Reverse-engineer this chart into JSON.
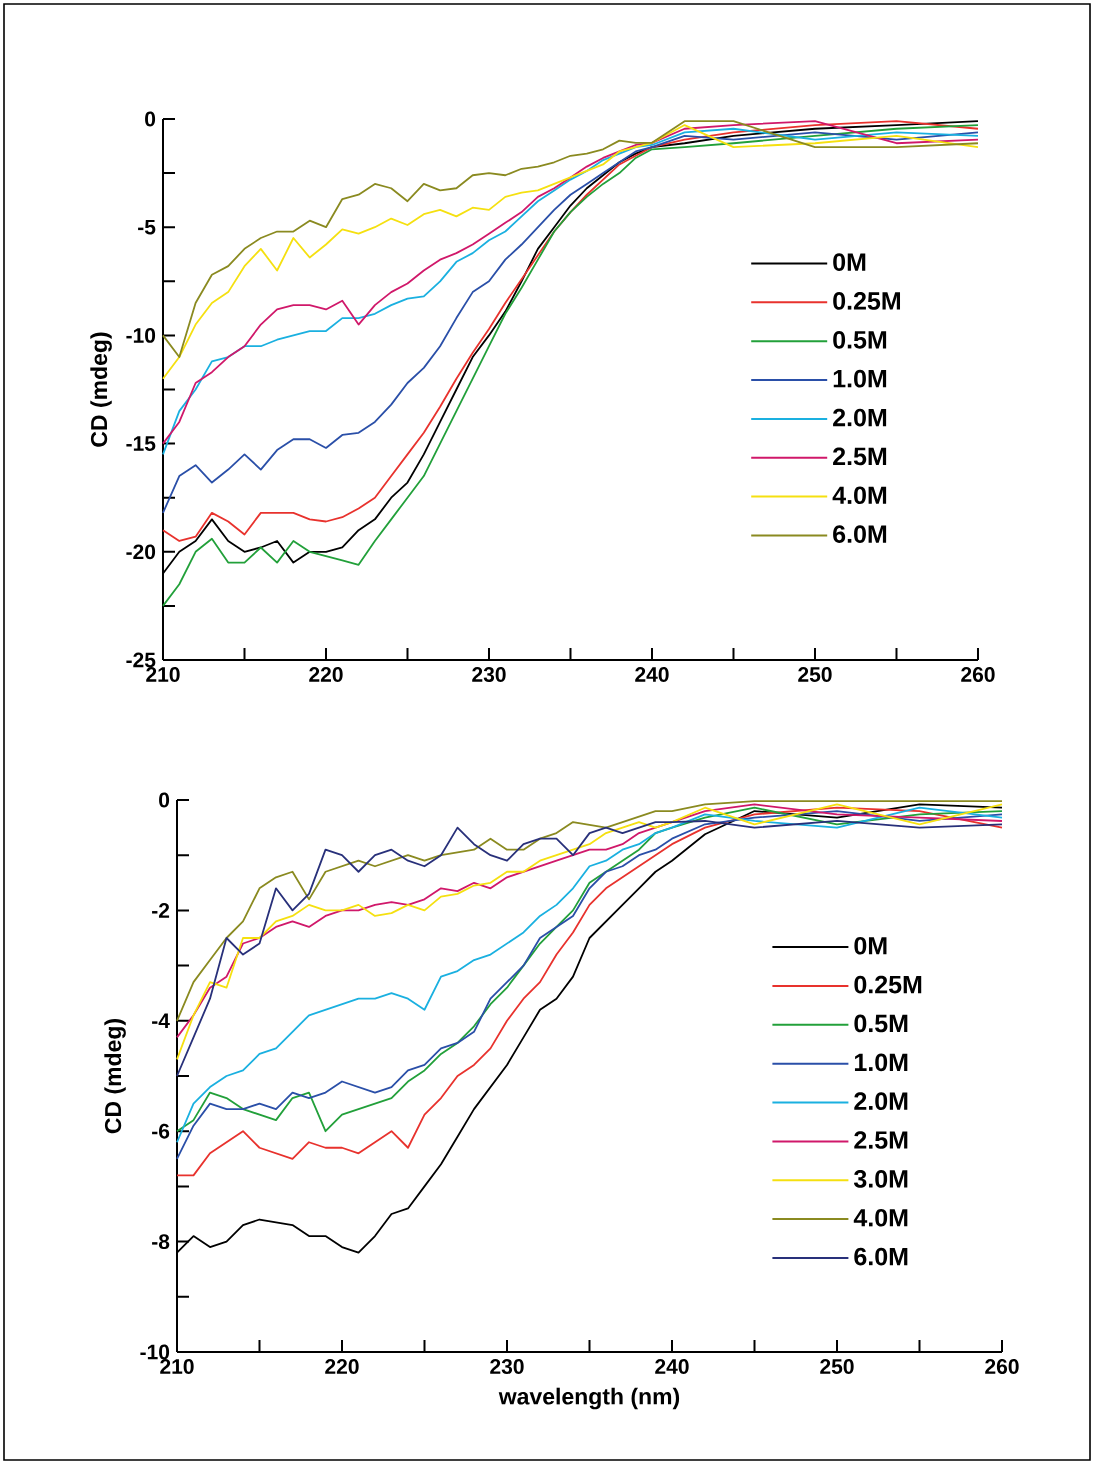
{
  "chart_data": [
    {
      "type": "line",
      "ylabel": "CD (mdeg)",
      "marker": "none",
      "legend": "right",
      "x": [
        210,
        211,
        212,
        213,
        214,
        215,
        216,
        217,
        218,
        219,
        220,
        221,
        222,
        223,
        224,
        225,
        226,
        227,
        228,
        229,
        230,
        231,
        232,
        233,
        234,
        235,
        236,
        237,
        238,
        239,
        240,
        242,
        245,
        250,
        255,
        260
      ],
      "xlim": [
        210,
        260
      ],
      "ylim": [
        -25,
        0
      ],
      "xticks": [
        210,
        {
          "value": 215,
          "label": null
        },
        220,
        {
          "value": 225,
          "label": null
        },
        230,
        {
          "value": 235,
          "label": null
        },
        240,
        {
          "value": 245,
          "label": null
        },
        250,
        {
          "value": 255,
          "label": null
        },
        260
      ],
      "yticks": [
        -25,
        {
          "value": -22.5,
          "label": null
        },
        -20,
        {
          "value": -17.5,
          "label": null
        },
        -15,
        {
          "value": -12.5,
          "label": null
        },
        -10,
        {
          "value": -7.5,
          "label": null
        },
        -5,
        {
          "value": -2.5,
          "label": null
        },
        0
      ],
      "series": [
        {
          "name": "0M",
          "color": "#000000",
          "values": [
            -21,
            -20,
            -19.5,
            -18.5,
            -19.5,
            -20,
            -19.8,
            -19.5,
            -20.5,
            -20,
            -20,
            -19.8,
            -19,
            -18.5,
            -17.5,
            -16.8,
            -15.5,
            -14,
            -12.5,
            -11,
            -10,
            -8.9,
            -7.5,
            -6,
            -5,
            -4,
            -3.2,
            -2.6,
            -2,
            -1.6,
            -1.3,
            -1.12,
            -0.78,
            -0.45,
            -0.28,
            -0.1
          ]
        },
        {
          "name": "0.25M",
          "color": "#e8322d",
          "values": [
            -19,
            -19.5,
            -19.3,
            -18.2,
            -18.6,
            -19.2,
            -18.2,
            -18.2,
            -18.2,
            -18.5,
            -18.6,
            -18.4,
            -18,
            -17.5,
            -16.5,
            -15.5,
            -14.5,
            -13.3,
            -12,
            -10.8,
            -9.7,
            -8.5,
            -7.4,
            -6.3,
            -5.2,
            -4.3,
            -3.5,
            -2.8,
            -2.1,
            -1.7,
            -1.3,
            -0.95,
            -0.62,
            -0.28,
            -0.1,
            -0.45
          ]
        },
        {
          "name": "0.5M",
          "color": "#22a03a",
          "values": [
            -22.5,
            -21.5,
            -20,
            -19.4,
            -20.5,
            -20.5,
            -19.8,
            -20.5,
            -19.5,
            -20,
            -20.2,
            -20.4,
            -20.6,
            -19.5,
            -18.5,
            -17.5,
            -16.5,
            -15,
            -13.5,
            -12,
            -10.5,
            -9,
            -7.8,
            -6.5,
            -5.2,
            -4.3,
            -3.6,
            -3,
            -2.5,
            -1.8,
            -1.4,
            -1.3,
            -1.12,
            -0.78,
            -0.45,
            -0.28
          ]
        },
        {
          "name": "1.0M",
          "color": "#2a4fa8",
          "values": [
            -18.2,
            -16.5,
            -16,
            -16.8,
            -16.2,
            -15.5,
            -16.2,
            -15.3,
            -14.8,
            -14.8,
            -15.2,
            -14.6,
            -14.5,
            -14,
            -13.2,
            -12.2,
            -11.5,
            -10.5,
            -9.2,
            -8,
            -7.5,
            -6.5,
            -5.8,
            -5,
            -4.2,
            -3.5,
            -3,
            -2.5,
            -2,
            -1.5,
            -1.3,
            -0.78,
            -0.95,
            -0.62,
            -0.95,
            -0.62
          ]
        },
        {
          "name": "2.0M",
          "color": "#1ab0e0",
          "values": [
            -15.5,
            -13.5,
            -12.5,
            -11.2,
            -11,
            -10.5,
            -10.5,
            -10.2,
            -10,
            -9.8,
            -9.8,
            -9.2,
            -9.2,
            -9,
            -8.6,
            -8.3,
            -8.2,
            -7.5,
            -6.6,
            -6.2,
            -5.6,
            -5.2,
            -4.5,
            -3.8,
            -3.3,
            -2.8,
            -2.4,
            -1.9,
            -1.6,
            -1.3,
            -1.2,
            -0.62,
            -0.45,
            -0.95,
            -0.62,
            -0.78
          ]
        },
        {
          "name": "2.5M",
          "color": "#d0186a",
          "values": [
            -15,
            -14,
            -12.2,
            -11.7,
            -11,
            -10.5,
            -9.5,
            -8.8,
            -8.6,
            -8.6,
            -8.8,
            -8.4,
            -9.5,
            -8.6,
            -8,
            -7.6,
            -7,
            -6.5,
            -6.2,
            -5.8,
            -5.3,
            -4.8,
            -4.3,
            -3.6,
            -3.2,
            -2.7,
            -2.2,
            -1.8,
            -1.5,
            -1.2,
            -1.1,
            -0.45,
            -0.28,
            -0.1,
            -1.12,
            -0.95
          ]
        },
        {
          "name": "4.0M",
          "color": "#f5e010",
          "values": [
            -12,
            -11,
            -9.5,
            -8.5,
            -8,
            -6.8,
            -6,
            -7,
            -5.5,
            -6.4,
            -5.8,
            -5.1,
            -5.3,
            -5,
            -4.6,
            -4.9,
            -4.4,
            -4.2,
            -4.5,
            -4.1,
            -4.2,
            -3.6,
            -3.4,
            -3.3,
            -3,
            -2.7,
            -2.4,
            -2.1,
            -1.5,
            -1.3,
            -1.1,
            -0.28,
            -1.3,
            -1.12,
            -0.78,
            -1.3
          ]
        },
        {
          "name": "6.0M",
          "color": "#8a8a20",
          "values": [
            -10,
            -11,
            -8.5,
            -7.2,
            -6.8,
            -6,
            -5.5,
            -5.2,
            -5.2,
            -4.7,
            -5,
            -3.7,
            -3.5,
            -3,
            -3.2,
            -3.8,
            -3,
            -3.3,
            -3.2,
            -2.6,
            -2.5,
            -2.6,
            -2.3,
            -2.2,
            -2,
            -1.7,
            -1.6,
            -1.4,
            -1,
            -1.1,
            -1.1,
            -0.1,
            -0.1,
            -1.3,
            -1.3,
            -1.12
          ]
        }
      ]
    },
    {
      "type": "line",
      "xlabel": "wavelength (nm)",
      "ylabel": "CD (mdeg)",
      "marker": "none",
      "legend": "right",
      "x": [
        210,
        211,
        212,
        213,
        214,
        215,
        216,
        217,
        218,
        219,
        220,
        221,
        222,
        223,
        224,
        225,
        226,
        227,
        228,
        229,
        230,
        231,
        232,
        233,
        234,
        235,
        236,
        237,
        238,
        239,
        240,
        242,
        245,
        250,
        255,
        260
      ],
      "xlim": [
        210,
        260
      ],
      "ylim": [
        -10,
        0
      ],
      "xticks": [
        210,
        {
          "value": 215,
          "label": null
        },
        220,
        {
          "value": 225,
          "label": null
        },
        230,
        {
          "value": 235,
          "label": null
        },
        240,
        {
          "value": 245,
          "label": null
        },
        250,
        {
          "value": 255,
          "label": null
        },
        260
      ],
      "yticks": [
        -10,
        {
          "value": -9,
          "label": null
        },
        -8,
        {
          "value": -7,
          "label": null
        },
        -6,
        {
          "value": -5,
          "label": null
        },
        -4,
        {
          "value": -3,
          "label": null
        },
        -2,
        {
          "value": -1,
          "label": null
        },
        0
      ],
      "series": [
        {
          "name": "0M",
          "color": "#000000",
          "values": [
            -8.2,
            -7.9,
            -8.1,
            -8,
            -7.7,
            -7.6,
            -7.65,
            -7.7,
            -7.9,
            -7.9,
            -8.1,
            -8.2,
            -7.9,
            -7.5,
            -7.4,
            -7,
            -6.6,
            -6.1,
            -5.6,
            -5.2,
            -4.8,
            -4.3,
            -3.8,
            -3.6,
            -3.2,
            -2.5,
            -2.2,
            -1.9,
            -1.6,
            -1.3,
            -1.1,
            -0.62,
            -0.2,
            -0.32,
            -0.08,
            -0.14
          ]
        },
        {
          "name": "0.25M",
          "color": "#e8322d",
          "values": [
            -6.8,
            -6.8,
            -6.4,
            -6.2,
            -6,
            -6.3,
            -6.4,
            -6.5,
            -6.2,
            -6.3,
            -6.3,
            -6.4,
            -6.2,
            -6,
            -6.3,
            -5.7,
            -5.4,
            -5,
            -4.8,
            -4.5,
            -4,
            -3.6,
            -3.3,
            -2.8,
            -2.4,
            -1.9,
            -1.6,
            -1.4,
            -1.2,
            -1,
            -0.8,
            -0.5,
            -0.26,
            -0.14,
            -0.2,
            -0.5
          ]
        },
        {
          "name": "0.5M",
          "color": "#22a03a",
          "values": [
            -6,
            -5.8,
            -5.3,
            -5.4,
            -5.6,
            -5.7,
            -5.8,
            -5.4,
            -5.3,
            -6,
            -5.7,
            -5.6,
            -5.5,
            -5.4,
            -5.1,
            -4.9,
            -4.6,
            -4.4,
            -4.1,
            -3.7,
            -3.4,
            -3,
            -2.6,
            -2.3,
            -2,
            -1.5,
            -1.3,
            -1.1,
            -0.9,
            -0.6,
            -0.5,
            -0.32,
            -0.14,
            -0.44,
            -0.26,
            -0.2
          ]
        },
        {
          "name": "1.0M",
          "color": "#2a4fa8",
          "values": [
            -6.5,
            -5.9,
            -5.5,
            -5.6,
            -5.6,
            -5.5,
            -5.6,
            -5.3,
            -5.4,
            -5.3,
            -5.1,
            -5.2,
            -5.3,
            -5.2,
            -4.9,
            -4.8,
            -4.5,
            -4.4,
            -4.2,
            -3.6,
            -3.3,
            -3,
            -2.5,
            -2.3,
            -2.1,
            -1.6,
            -1.3,
            -1.2,
            -1,
            -0.9,
            -0.7,
            -0.44,
            -0.32,
            -0.2,
            -0.38,
            -0.26
          ]
        },
        {
          "name": "2.0M",
          "color": "#1ab0e0",
          "values": [
            -6.2,
            -5.5,
            -5.2,
            -5,
            -4.9,
            -4.6,
            -4.5,
            -4.2,
            -3.9,
            -3.8,
            -3.7,
            -3.6,
            -3.6,
            -3.5,
            -3.6,
            -3.8,
            -3.2,
            -3.1,
            -2.9,
            -2.8,
            -2.6,
            -2.4,
            -2.1,
            -1.9,
            -1.6,
            -1.2,
            -1.1,
            -0.9,
            -0.8,
            -0.6,
            -0.5,
            -0.26,
            -0.38,
            -0.5,
            -0.14,
            -0.32
          ]
        },
        {
          "name": "2.5M",
          "color": "#d0186a",
          "values": [
            -4.3,
            -3.9,
            -3.4,
            -3.2,
            -2.6,
            -2.5,
            -2.3,
            -2.2,
            -2.3,
            -2.1,
            -2,
            -2,
            -1.9,
            -1.85,
            -1.9,
            -1.8,
            -1.6,
            -1.65,
            -1.5,
            -1.6,
            -1.4,
            -1.3,
            -1.2,
            -1.1,
            -1,
            -0.9,
            -0.9,
            -0.8,
            -0.6,
            -0.5,
            -0.4,
            -0.2,
            -0.08,
            -0.26,
            -0.32,
            -0.38
          ]
        },
        {
          "name": "3.0M",
          "color": "#f5e010",
          "values": [
            -4.7,
            -3.9,
            -3.3,
            -3.4,
            -2.5,
            -2.5,
            -2.2,
            -2.1,
            -1.9,
            -2,
            -2,
            -1.9,
            -2.1,
            -2.05,
            -1.9,
            -2,
            -1.75,
            -1.7,
            -1.55,
            -1.5,
            -1.3,
            -1.3,
            -1.1,
            -1,
            -0.9,
            -0.8,
            -0.6,
            -0.5,
            -0.4,
            -0.5,
            -0.4,
            -0.14,
            -0.44,
            -0.08,
            -0.44,
            -0.08
          ]
        },
        {
          "name": "4.0M",
          "color": "#8a8a20",
          "values": [
            -4,
            -3.3,
            -2.9,
            -2.5,
            -2.2,
            -1.6,
            -1.4,
            -1.3,
            -1.8,
            -1.3,
            -1.2,
            -1.1,
            -1.2,
            -1.1,
            -1,
            -1.1,
            -1,
            -0.95,
            -0.9,
            -0.7,
            -0.9,
            -0.9,
            -0.7,
            -0.6,
            -0.4,
            -0.45,
            -0.5,
            -0.4,
            -0.3,
            -0.2,
            -0.2,
            -0.08,
            -0.02,
            -0.02,
            -0.02,
            -0.02
          ]
        },
        {
          "name": "6.0M",
          "color": "#28307a",
          "values": [
            -5,
            -4.3,
            -3.6,
            -2.5,
            -2.8,
            -2.6,
            -1.6,
            -2,
            -1.7,
            -0.9,
            -1,
            -1.3,
            -1,
            -0.9,
            -1.1,
            -1.2,
            -1,
            -0.5,
            -0.8,
            -1,
            -1.1,
            -0.8,
            -0.7,
            -0.7,
            -1,
            -0.6,
            -0.5,
            -0.6,
            -0.5,
            -0.4,
            -0.4,
            -0.38,
            -0.5,
            -0.38,
            -0.5,
            -0.44
          ]
        }
      ]
    }
  ]
}
